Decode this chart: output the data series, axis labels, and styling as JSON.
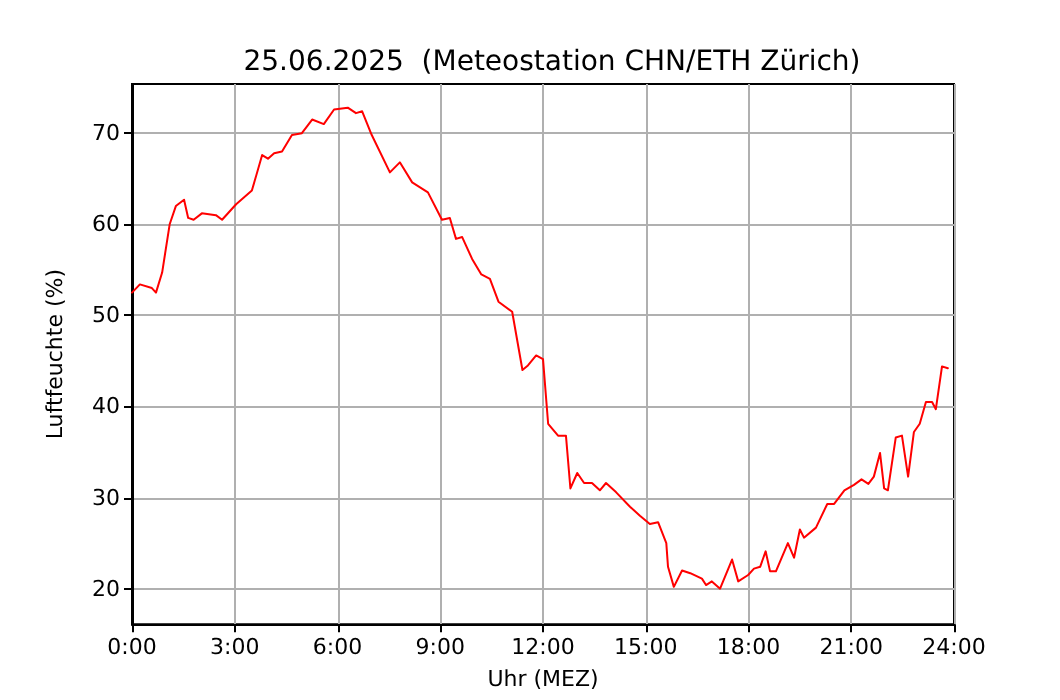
{
  "chart_data": {
    "type": "line",
    "title": "25.06.2025  (Meteostation CHN/ETH Zürich)",
    "xlabel": "Uhr (MEZ)",
    "ylabel": "Luftfeuchte (%)",
    "x": [
      0,
      0.23,
      0.58,
      0.7,
      0.88,
      1.1,
      1.28,
      1.52,
      1.64,
      1.8,
      2.04,
      2.45,
      2.63,
      3.04,
      3.5,
      3.8,
      3.97,
      4.15,
      4.38,
      4.67,
      4.96,
      5.26,
      5.6,
      5.9,
      6.3,
      6.54,
      6.72,
      7.0,
      7.53,
      7.82,
      8.18,
      8.64,
      9.05,
      9.28,
      9.46,
      9.64,
      9.93,
      10.2,
      10.45,
      10.7,
      11.1,
      11.4,
      11.56,
      11.8,
      12.0,
      12.15,
      12.44,
      12.67,
      12.8,
      13.0,
      13.2,
      13.43,
      13.66,
      13.84,
      14.13,
      14.54,
      14.83,
      15.12,
      15.36,
      15.6,
      15.65,
      15.82,
      16.06,
      16.3,
      16.64,
      16.76,
      16.93,
      17.17,
      17.52,
      17.7,
      17.99,
      18.16,
      18.34,
      18.5,
      18.63,
      18.8,
      19.15,
      19.33,
      19.5,
      19.62,
      19.97,
      20.3,
      20.5,
      20.8,
      21.08,
      21.3,
      21.5,
      21.66,
      21.84,
      21.96,
      22.07,
      22.3,
      22.48,
      22.66,
      22.83,
      23.0,
      23.18,
      23.36,
      23.47,
      23.65,
      23.82
    ],
    "series": [
      {
        "color": "#ff0000",
        "values": [
          52.5,
          53.4,
          53,
          52.5,
          54.7,
          60,
          62,
          62.7,
          60.7,
          60.5,
          61.2,
          61,
          60.5,
          62.2,
          63.7,
          67.6,
          67.2,
          67.8,
          68,
          69.8,
          70,
          71.5,
          71,
          72.6,
          72.8,
          72.2,
          72.4,
          69.8,
          65.7,
          66.8,
          64.6,
          63.5,
          60.5,
          60.7,
          58.4,
          58.6,
          56.2,
          54.5,
          54,
          51.5,
          50.4,
          44,
          44.5,
          45.6,
          45.2,
          38.1,
          36.8,
          36.8,
          31,
          32.7,
          31.6,
          31.6,
          30.8,
          31.6,
          30.6,
          29,
          28,
          27.1,
          27.3,
          25,
          22.4,
          20.2,
          22,
          21.7,
          21.1,
          20.4,
          20.8,
          20,
          23.2,
          20.8,
          21.5,
          22.2,
          22.4,
          24.1,
          21.9,
          21.9,
          25,
          23.4,
          26.5,
          25.6,
          26.7,
          29.3,
          29.3,
          30.8,
          31.4,
          32,
          31.5,
          32.3,
          34.9,
          31,
          30.8,
          36.6,
          36.8,
          32.3,
          37.2,
          38.1,
          40.5,
          40.5,
          39.7,
          44.4,
          44.2
        ]
      }
    ],
    "xlim": [
      0,
      24
    ],
    "xticks": [
      {
        "value": 0,
        "label": "0:00"
      },
      {
        "value": 3,
        "label": "3:00"
      },
      {
        "value": 6,
        "label": "6:00"
      },
      {
        "value": 9,
        "label": "9:00"
      },
      {
        "value": 12,
        "label": "12:00"
      },
      {
        "value": 15,
        "label": "15:00"
      },
      {
        "value": 18,
        "label": "18:00"
      },
      {
        "value": 21,
        "label": "21:00"
      },
      {
        "value": 24,
        "label": "24:00"
      }
    ],
    "ylim": [
      16.1,
      75.4
    ],
    "yticks": [
      20,
      30,
      40,
      50,
      60,
      70
    ],
    "grid": true,
    "marker": "none",
    "line_style": "solid"
  }
}
